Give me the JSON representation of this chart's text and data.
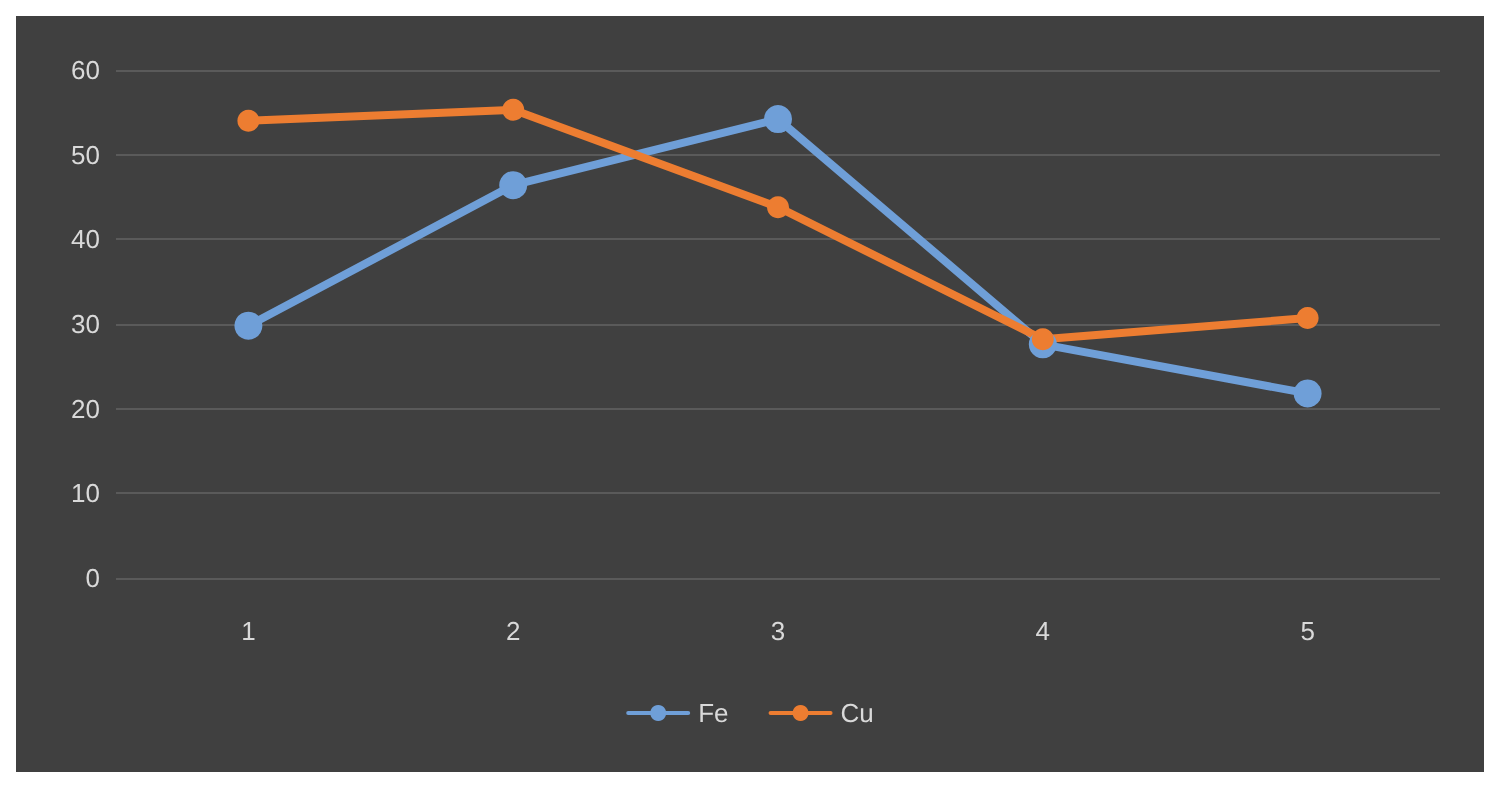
{
  "chart_data": {
    "type": "line",
    "categories": [
      "1",
      "2",
      "3",
      "4",
      "5"
    ],
    "series": [
      {
        "name": "Fe",
        "color": "#6f9fd8",
        "values": [
          29.8,
          46.4,
          54.2,
          27.6,
          21.8
        ]
      },
      {
        "name": "Cu",
        "color": "#ed7d31",
        "values": [
          54,
          55.3,
          43.8,
          28.2,
          30.7
        ]
      }
    ],
    "ylim": [
      0,
      60
    ],
    "yticks": [
      0,
      10,
      20,
      30,
      40,
      50,
      60
    ],
    "grid": "y",
    "legend": "bottom",
    "marker": "circle",
    "line_style": "solid"
  }
}
